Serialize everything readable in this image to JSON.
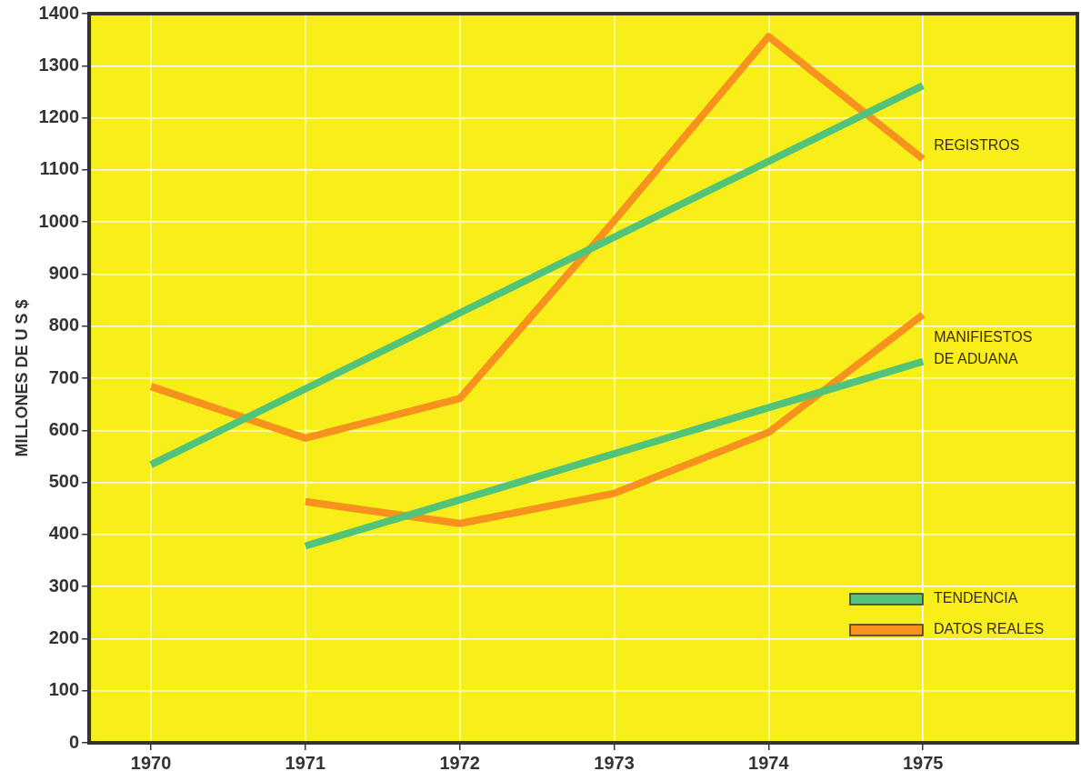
{
  "chart_data": {
    "type": "line",
    "ylabel": "MILLONES DE U S $",
    "xlim": [
      1969.6,
      1976.0
    ],
    "xticks": [
      1970,
      1971,
      1972,
      1973,
      1974,
      1975
    ],
    "ylim": [
      0,
      1400
    ],
    "yticks": [
      0,
      100,
      200,
      300,
      400,
      500,
      600,
      700,
      800,
      900,
      1000,
      1100,
      1200,
      1300,
      1400
    ],
    "grid": true,
    "legend": "bottom right",
    "marker": "none",
    "line_style": "solid",
    "series": [
      {
        "name": "TENDENCIA",
        "color": "#52c47a",
        "x": [
          1970,
          1975
        ],
        "values": [
          534,
          1262
        ]
      },
      {
        "name": "DATOS REALES",
        "color": "#f7921e",
        "x": [
          1970,
          1971,
          1972,
          1973,
          1974,
          1975
        ],
        "values": [
          684,
          585,
          661,
          1002,
          1356,
          1121
        ]
      },
      {
        "color": "#52c47a",
        "x": [
          1971,
          1975
        ],
        "values": [
          378,
          732
        ]
      },
      {
        "color": "#f7921e",
        "x": [
          1971,
          1972,
          1973,
          1974,
          1975
        ],
        "values": [
          463,
          421,
          479,
          596,
          822
        ]
      }
    ],
    "annotations": [
      {
        "text": "REGISTROS",
        "x": 1975,
        "y": 1121
      },
      {
        "text": "MANIFIESTOS\nDE ADUANA",
        "x": 1975,
        "y": 732
      }
    ]
  }
}
